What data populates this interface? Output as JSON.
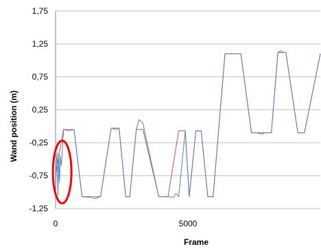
{
  "chart_data": {
    "type": "line",
    "title": "",
    "xlabel": "Frame",
    "ylabel": "Wand position (m)",
    "xlim": [
      0,
      10000
    ],
    "ylim": [
      -1.25,
      1.75
    ],
    "x_ticks": [
      0,
      5000
    ],
    "x_tick_labels": [
      "0",
      "5000"
    ],
    "y_ticks": [
      -1.25,
      -0.75,
      -0.25,
      0.25,
      0.75,
      1.25,
      1.75
    ],
    "y_tick_labels": [
      "-1,25",
      "-0,75",
      "-0,25",
      "0,25",
      "0,75",
      "1,25",
      "1,75"
    ],
    "grid": "horizontal",
    "legend": "none",
    "series": [
      {
        "color": "#c0504d",
        "x": [
          0,
          300,
          700,
          1000,
          1700,
          2100,
          2400,
          2650,
          2800,
          3050,
          3300,
          3900,
          4250,
          4650,
          4900,
          5050,
          5300,
          5500,
          5750,
          5950,
          6400,
          7000,
          7400,
          7600,
          8150,
          8400,
          8700,
          9150,
          9400,
          10000
        ],
        "values": [
          -0.75,
          -0.05,
          -0.05,
          -1.07,
          -1.07,
          -0.03,
          -0.03,
          -1.07,
          -1.07,
          -0.05,
          -0.05,
          -1.07,
          -1.07,
          -0.07,
          -0.07,
          -1.07,
          -0.07,
          -0.07,
          -1.07,
          -1.07,
          1.1,
          1.1,
          -0.1,
          -0.1,
          -0.1,
          1.12,
          1.12,
          -0.1,
          -0.1,
          1.1
        ]
      },
      {
        "color": "#4f81bd",
        "x": [
          0,
          30,
          60,
          90,
          120,
          150,
          180,
          220,
          260,
          300,
          500,
          700,
          1000,
          1300,
          1500,
          1700,
          2100,
          2300,
          2400,
          2650,
          2800,
          3050,
          3150,
          3300,
          3350,
          3900,
          4250,
          4450,
          4550,
          4650,
          4900,
          5050,
          5300,
          5500,
          5750,
          5950,
          6400,
          7000,
          7400,
          7600,
          7800,
          7900,
          8150,
          8400,
          8500,
          8600,
          8700,
          9150,
          9400,
          10000
        ],
        "values": [
          -1.0,
          -0.55,
          -0.4,
          -1.05,
          -0.42,
          -0.85,
          -0.45,
          -0.6,
          -0.35,
          -0.05,
          -0.07,
          -0.05,
          -1.07,
          -1.08,
          -1.1,
          -1.07,
          -0.03,
          -0.05,
          -0.03,
          -1.07,
          -1.07,
          -0.05,
          0.1,
          0.05,
          -0.05,
          -1.07,
          -1.07,
          -1.08,
          -1.02,
          -1.07,
          -0.07,
          -1.07,
          -0.07,
          -0.07,
          -1.07,
          -1.07,
          1.1,
          1.1,
          -0.1,
          -0.1,
          -0.12,
          -0.1,
          -0.1,
          1.12,
          1.15,
          1.12,
          1.12,
          -0.1,
          -0.1,
          1.1
        ]
      }
    ],
    "annotations": [
      {
        "shape": "ellipse",
        "color": "#ff0000",
        "x_range": [
          -100,
          600
        ],
        "y_range": [
          -1.17,
          -0.22
        ]
      }
    ]
  }
}
